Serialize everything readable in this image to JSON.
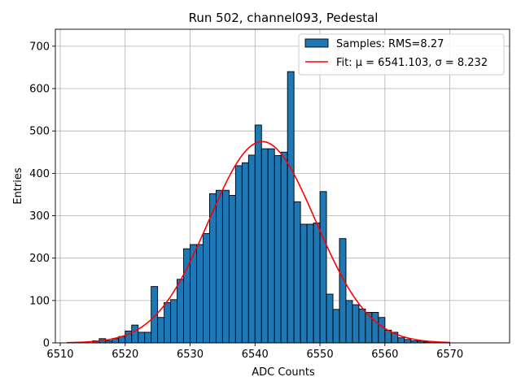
{
  "chart_data": {
    "type": "bar",
    "title": "Run 502, channel093, Pedestal",
    "xlabel": "ADC Counts",
    "ylabel": "Entries",
    "xlim": [
      6509.25,
      6579.2
    ],
    "ylim": [
      0,
      740
    ],
    "grid": true,
    "legend_position": "top-right",
    "xticks": [
      6510,
      6520,
      6530,
      6540,
      6550,
      6560,
      6570
    ],
    "yticks": [
      0,
      100,
      200,
      300,
      400,
      500,
      600,
      700
    ],
    "bin_width": 1,
    "series": [
      {
        "name": "Samples: RMS=8.27",
        "kind": "histogram",
        "color": "#1f77b4",
        "edge_color": "#000000",
        "bin_starts": [
          6515,
          6516,
          6517,
          6518,
          6519,
          6520,
          6521,
          6522,
          6523,
          6524,
          6525,
          6526,
          6527,
          6528,
          6529,
          6530,
          6531,
          6532,
          6533,
          6534,
          6535,
          6536,
          6537,
          6538,
          6539,
          6540,
          6541,
          6542,
          6543,
          6544,
          6545,
          6546,
          6547,
          6548,
          6549,
          6550,
          6551,
          6552,
          6553,
          6554,
          6555,
          6556,
          6557,
          6558,
          6559,
          6560,
          6561,
          6562,
          6563,
          6564,
          6565,
          6566,
          6567,
          6568,
          6569
        ],
        "counts": [
          5,
          10,
          5,
          10,
          15,
          28,
          42,
          25,
          25,
          133,
          60,
          95,
          102,
          150,
          222,
          232,
          232,
          258,
          352,
          360,
          360,
          348,
          418,
          425,
          443,
          514,
          458,
          458,
          442,
          450,
          640,
          333,
          280,
          280,
          283,
          357,
          115,
          79,
          246,
          100,
          90,
          80,
          72,
          72,
          60,
          30,
          25,
          12,
          8,
          5,
          4,
          2,
          3,
          1,
          1
        ]
      },
      {
        "name": "Fit: μ = 6541.103, σ = 8.232",
        "kind": "gaussian-fit",
        "color": "#ff0000",
        "mu": 6541.103,
        "sigma": 8.232,
        "amplitude": 475,
        "x_range": [
          6511,
          6570
        ]
      }
    ]
  }
}
